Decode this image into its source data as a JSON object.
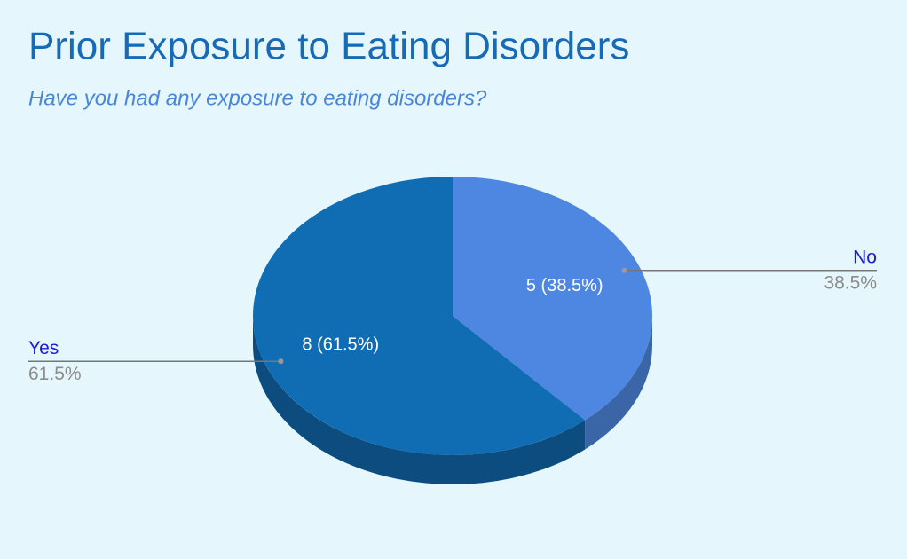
{
  "chart_data": {
    "type": "pie",
    "title": "Prior Exposure to Eating Disorders",
    "subtitle": "Have you had any exposure to eating disorders?",
    "categories": [
      "No",
      "Yes"
    ],
    "values": [
      5,
      8
    ],
    "value_labels": [
      "5 (38.5%)",
      "8 (61.5%)"
    ],
    "percent_labels": [
      "38.5%",
      "61.5%"
    ],
    "colors": [
      "#4e87e2",
      "#116db3"
    ],
    "side_colors": [
      "#3a66a8",
      "#0c4c7e"
    ],
    "three_d": true
  }
}
